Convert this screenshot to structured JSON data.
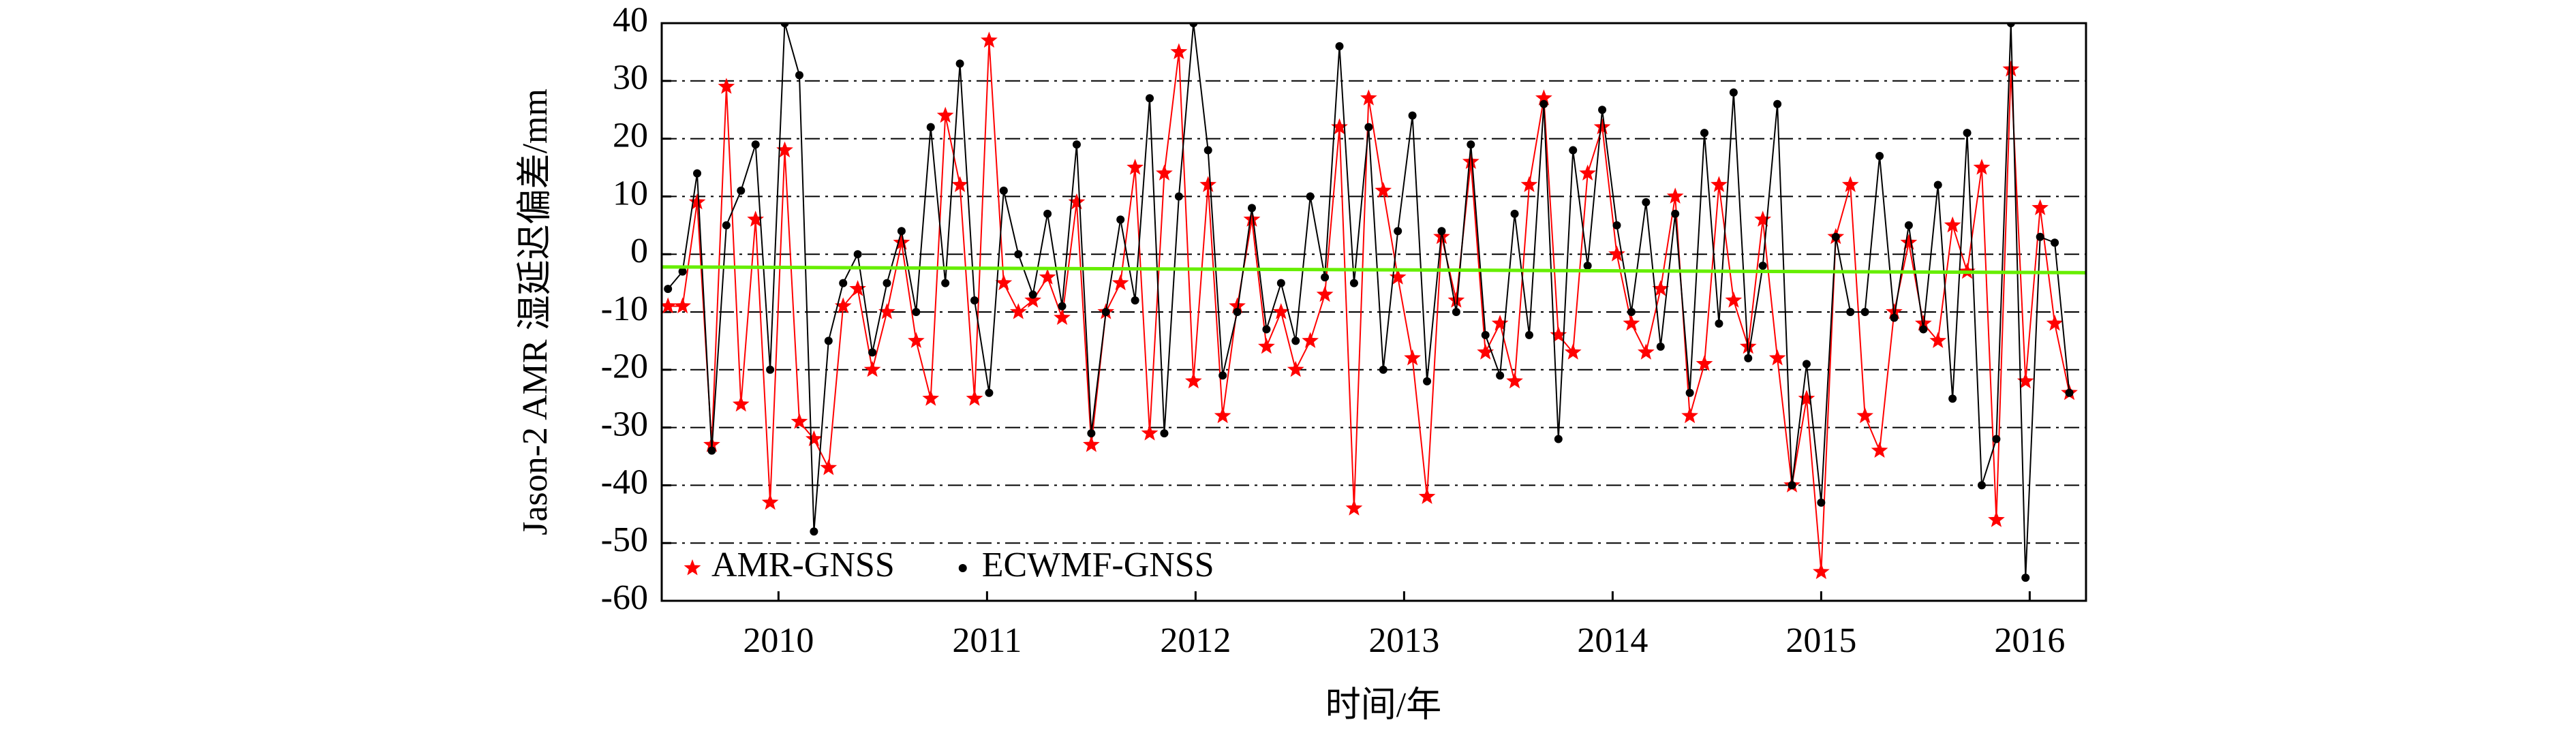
{
  "chart_data": {
    "type": "line",
    "y_label": "Jason-2 AMR 湿延迟偏差/mm",
    "x_label": "时间/年",
    "x": [
      2009.47,
      2009.54,
      2009.61,
      2009.68,
      2009.75,
      2009.82,
      2009.89,
      2009.96,
      2010.03,
      2010.1,
      2010.17,
      2010.24,
      2010.31,
      2010.38,
      2010.45,
      2010.52,
      2010.59,
      2010.66,
      2010.73,
      2010.8,
      2010.87,
      2010.94,
      2011.01,
      2011.08,
      2011.15,
      2011.22,
      2011.29,
      2011.36,
      2011.43,
      2011.5,
      2011.57,
      2011.64,
      2011.71,
      2011.78,
      2011.85,
      2011.92,
      2011.99,
      2012.06,
      2012.13,
      2012.2,
      2012.27,
      2012.34,
      2012.41,
      2012.48,
      2012.55,
      2012.62,
      2012.69,
      2012.76,
      2012.83,
      2012.9,
      2012.97,
      2013.04,
      2013.11,
      2013.18,
      2013.25,
      2013.32,
      2013.39,
      2013.46,
      2013.53,
      2013.6,
      2013.67,
      2013.74,
      2013.81,
      2013.88,
      2013.95,
      2014.02,
      2014.09,
      2014.16,
      2014.23,
      2014.3,
      2014.37,
      2014.44,
      2014.51,
      2014.58,
      2014.65,
      2014.72,
      2014.79,
      2014.86,
      2014.93,
      2015.0,
      2015.07,
      2015.14,
      2015.21,
      2015.28,
      2015.35,
      2015.42,
      2015.49,
      2015.56,
      2015.63,
      2015.7,
      2015.77,
      2015.84,
      2015.91,
      2015.98,
      2016.05,
      2016.12,
      2016.19
    ],
    "series": [
      {
        "name": "AMR-GNSS",
        "color": "#ff0000",
        "marker": "star",
        "values": [
          -9,
          -9,
          9,
          -33,
          29,
          -26,
          6,
          -43,
          18,
          -29,
          -32,
          -37,
          -9,
          -6,
          -20,
          -10,
          2,
          -15,
          -25,
          24,
          12,
          -25,
          37,
          -5,
          -10,
          -8,
          -4,
          -11,
          9,
          -33,
          -10,
          -5,
          15,
          -31,
          14,
          35,
          -22,
          12,
          -28,
          -9,
          6,
          -16,
          -10,
          -20,
          -15,
          -7,
          22,
          -44,
          27,
          11,
          -4,
          -18,
          -42,
          3,
          -8,
          16,
          -17,
          -12,
          -22,
          12,
          27,
          -14,
          -17,
          14,
          22,
          0,
          -12,
          -17,
          -6,
          10,
          -28,
          -19,
          12,
          -8,
          -16,
          6,
          -18,
          -40,
          -25,
          -55,
          3,
          12,
          -28,
          -34,
          -10,
          2,
          -12,
          -15,
          5,
          -3,
          15,
          -46,
          32,
          -22,
          8,
          -12,
          -24
        ]
      },
      {
        "name": "ECWMF-GNSS",
        "color": "#000000",
        "marker": "dot",
        "values": [
          -6,
          -3,
          14,
          -34,
          5,
          11,
          19,
          -20,
          40,
          31,
          -48,
          -15,
          -5,
          0,
          -17,
          -5,
          4,
          -10,
          22,
          -5,
          33,
          -8,
          -24,
          11,
          0,
          -7,
          7,
          -9,
          19,
          -31,
          -10,
          6,
          -8,
          27,
          -31,
          10,
          40,
          18,
          -21,
          -10,
          8,
          -13,
          -5,
          -15,
          10,
          -4,
          36,
          -5,
          22,
          -20,
          4,
          24,
          -22,
          4,
          -10,
          19,
          -14,
          -21,
          7,
          -14,
          26,
          -32,
          18,
          -2,
          25,
          5,
          -10,
          9,
          -16,
          7,
          -24,
          21,
          -12,
          28,
          -18,
          -2,
          26,
          -40,
          -19,
          -43,
          3,
          -10,
          -10,
          17,
          -11,
          5,
          -13,
          12,
          -25,
          21,
          -40,
          -32,
          40,
          -56,
          3,
          2,
          -24
        ]
      }
    ],
    "trend": {
      "color": "#66ee00",
      "x": [
        2009.44,
        2016.27
      ],
      "values": [
        -2.2,
        -3.2
      ]
    },
    "xlim": [
      2009.44,
      2016.27
    ],
    "xticks": [
      2010,
      2011,
      2012,
      2013,
      2014,
      2015,
      2016
    ],
    "ylim": [
      -60,
      40
    ],
    "yticks": [
      -60,
      -50,
      -40,
      -30,
      -20,
      -10,
      0,
      10,
      20,
      30,
      40
    ],
    "grid": true,
    "legend": "lower left"
  }
}
